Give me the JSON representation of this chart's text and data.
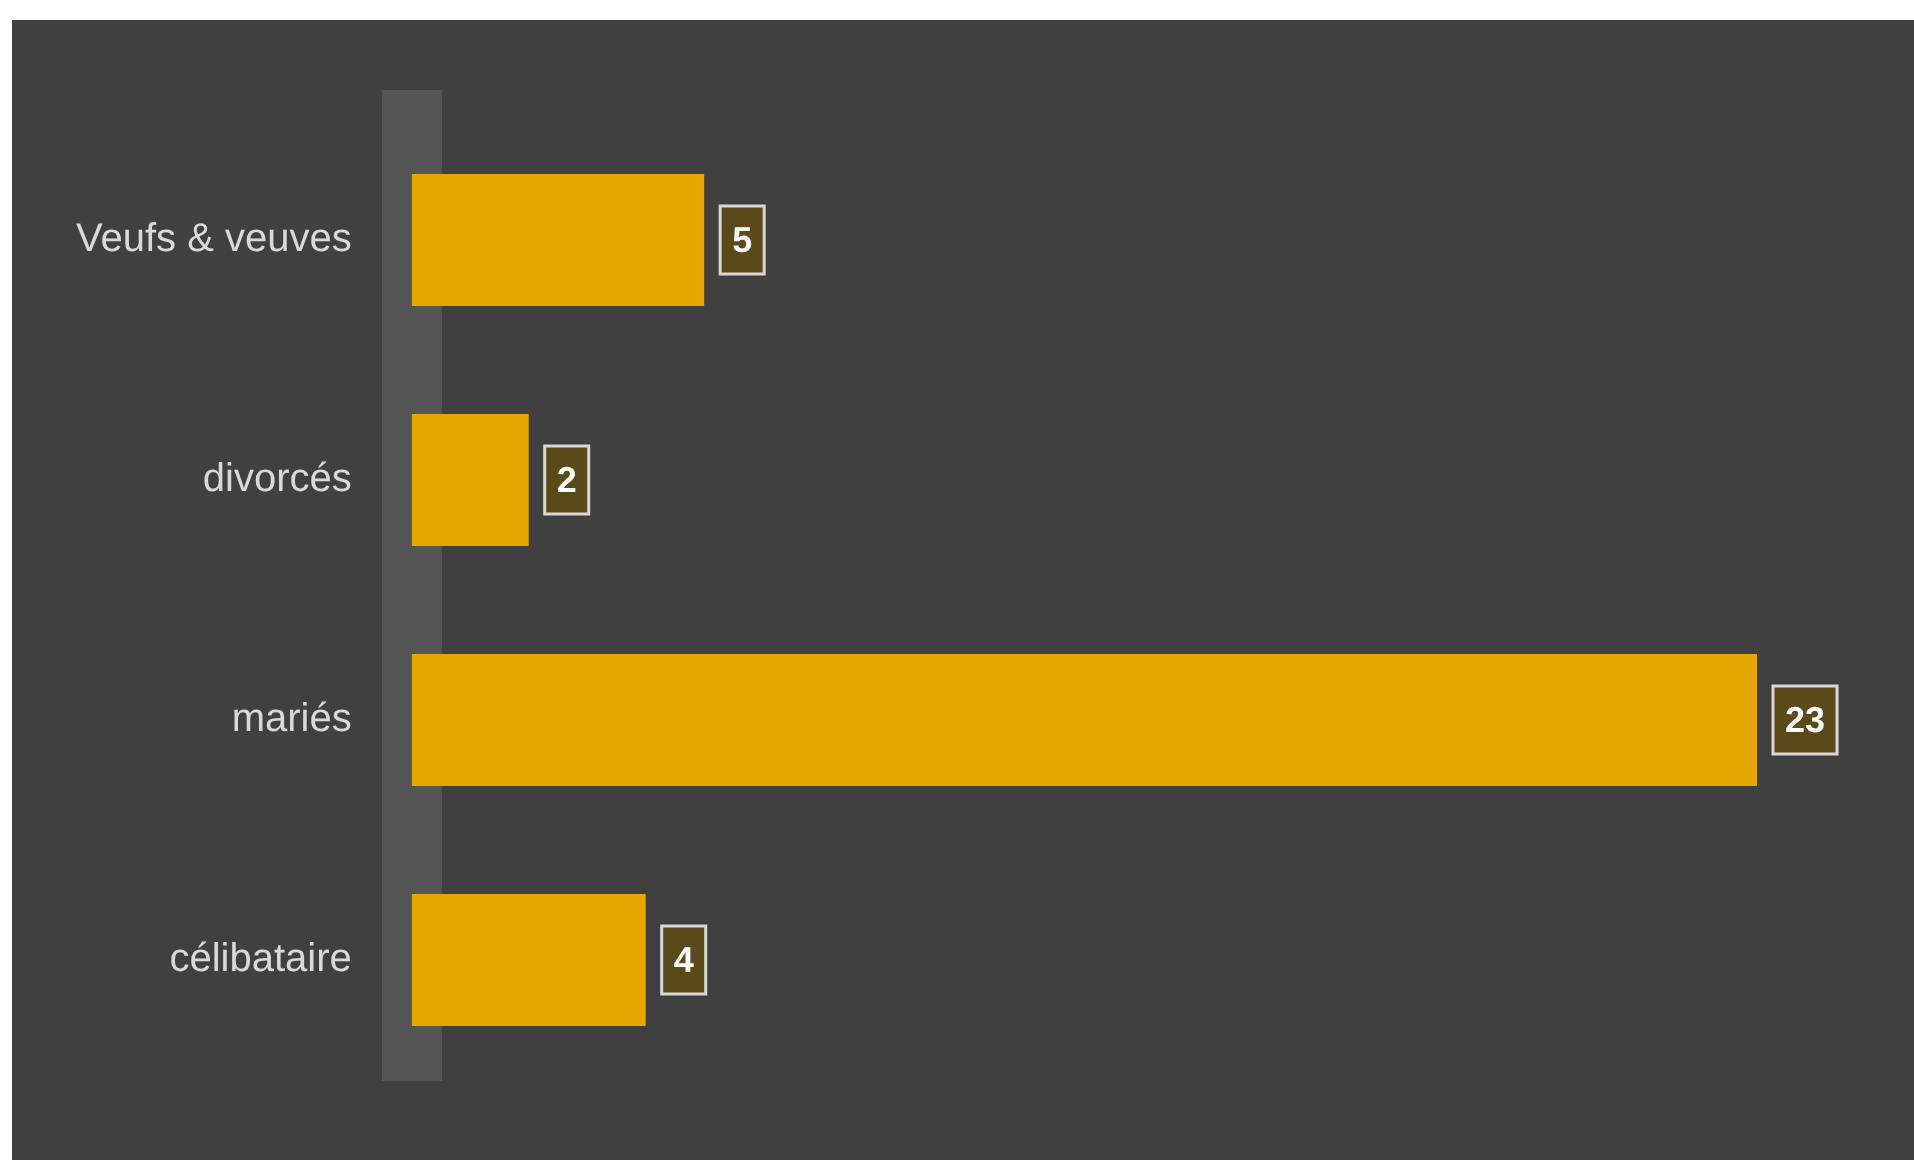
{
  "chart_data": {
    "type": "bar",
    "orientation": "horizontal",
    "categories": [
      "Veufs & veuves",
      "divorcés",
      "mariés",
      "célibataire"
    ],
    "values": [
      5,
      2,
      23,
      4
    ],
    "color": "#e6a800",
    "tick_labels": "y",
    "legend": false,
    "data_labels": true
  }
}
